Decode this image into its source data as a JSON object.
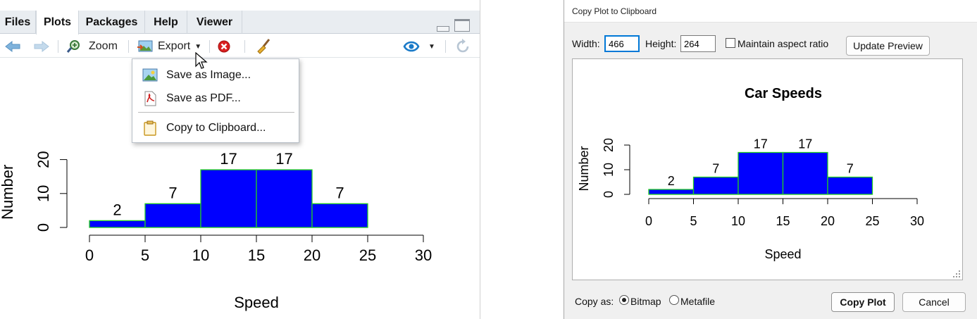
{
  "rstudio": {
    "tabs": [
      "Files",
      "Plots",
      "Packages",
      "Help",
      "Viewer"
    ],
    "active_tab": "Plots",
    "toolbar": {
      "zoom_label": "Zoom",
      "export_label": "Export"
    },
    "export_menu": {
      "items": [
        {
          "label": "Save as Image...",
          "icon": "image-icon"
        },
        {
          "label": "Save as PDF...",
          "icon": "pdf-icon"
        },
        {
          "label": "Copy to Clipboard...",
          "icon": "clipboard-icon"
        }
      ]
    }
  },
  "dialog": {
    "title": "Copy Plot to Clipboard",
    "width_label": "Width:",
    "width_value": "466",
    "height_label": "Height:",
    "height_value": "264",
    "maintain_aspect_label": "Maintain aspect ratio",
    "maintain_aspect_checked": false,
    "update_preview_label": "Update Preview",
    "copy_as_label": "Copy as:",
    "copy_as_options": [
      "Bitmap",
      "Metafile"
    ],
    "copy_as_selected": "Bitmap",
    "copy_plot_label": "Copy Plot",
    "cancel_label": "Cancel"
  },
  "chart_data": {
    "type": "bar",
    "title": "Car Speeds",
    "xlabel": "Speed",
    "ylabel": "Number",
    "bins": [
      [
        0,
        5
      ],
      [
        5,
        10
      ],
      [
        10,
        15
      ],
      [
        15,
        20
      ],
      [
        20,
        25
      ]
    ],
    "values": [
      2,
      7,
      17,
      17,
      7
    ],
    "data_labels": [
      "2",
      "7",
      "17",
      "17",
      "7"
    ],
    "xticks": [
      "0",
      "5",
      "10",
      "15",
      "20",
      "25",
      "30"
    ],
    "yticks": [
      "0",
      "10",
      "20"
    ],
    "xlim": [
      0,
      30
    ],
    "ylim": [
      0,
      25
    ],
    "colors": {
      "fill": "#0000ff",
      "border": "#22cc22"
    }
  }
}
